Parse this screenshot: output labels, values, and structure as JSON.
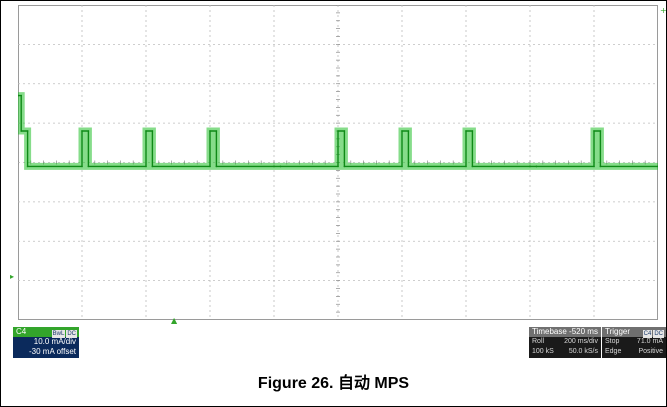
{
  "figure": {
    "caption": "Figure 26. 自动 MPS"
  },
  "channel_panel": {
    "name": "C4",
    "tags": [
      "BwL",
      "DC"
    ],
    "scale": "10.0 mA/div",
    "offset": "-30 mA offset"
  },
  "timebase_panel": {
    "title": "Timebase -520 ms",
    "rows": [
      {
        "label": "Roll",
        "value": "200 ms/div"
      },
      {
        "label": "100 kS",
        "value": "50.0 kS/s"
      }
    ]
  },
  "trigger_panel": {
    "title": "Trigger",
    "tags": [
      "C4",
      "DC"
    ],
    "rows": [
      {
        "label": "Stop",
        "value": "71.0 mA"
      },
      {
        "label": "Edge",
        "value": "Positive"
      }
    ]
  },
  "colors": {
    "trace": "#22c02a",
    "trace_dark": "#0f8a17",
    "grid": "#bdbdbd",
    "background": "#ffffff"
  },
  "chart_data": {
    "type": "line",
    "title": "",
    "xlabel": "",
    "ylabel": "",
    "grid": true,
    "divisions": {
      "x": 10,
      "y": 8
    },
    "series": [
      {
        "x": [
          0,
          0.05,
          0.05,
          0.15,
          0.15,
          1.0,
          1.0,
          1.1,
          1.1,
          2.0,
          2.0,
          2.1,
          2.1,
          3.0,
          3.0,
          3.1,
          3.1,
          4.0,
          4.0,
          4.1,
          4.1,
          5.0,
          5.0,
          5.1,
          5.1,
          6.0,
          6.0,
          6.1,
          6.1,
          7.0,
          7.0,
          7.1,
          7.1,
          8.0,
          8.0,
          8.1,
          8.1,
          9.0,
          9.0,
          9.1,
          9.1,
          10.0
        ],
        "y": [
          5.7,
          5.7,
          4.8,
          4.8,
          3.9,
          3.9,
          4.8,
          4.8,
          3.9,
          3.9,
          4.8,
          4.8,
          3.9,
          3.9,
          4.8,
          4.8,
          3.9,
          3.9,
          3.9,
          3.9,
          3.9,
          3.9,
          4.8,
          4.8,
          3.9,
          3.9,
          4.8,
          4.8,
          3.9,
          3.9,
          4.8,
          4.8,
          3.9,
          3.9,
          3.9,
          3.9,
          3.9,
          3.9,
          4.8,
          4.8,
          3.9,
          3.9
        ]
      }
    ]
  }
}
